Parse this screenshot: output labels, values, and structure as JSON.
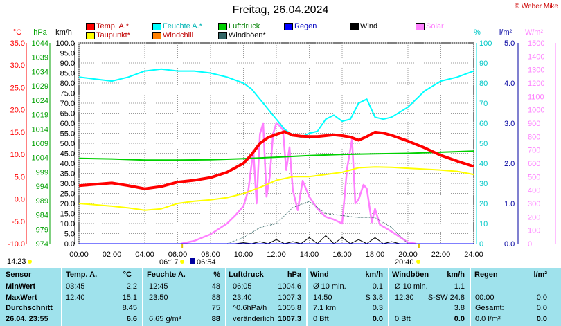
{
  "title": "Freitag, 26.04.2024",
  "credit": "© Weber Mike",
  "legend": [
    {
      "label": "Temp. A.*",
      "color": "#ff0000"
    },
    {
      "label": "Feuchte A.*",
      "color": "#00ffff"
    },
    {
      "label": "Luftdruck",
      "color": "#00d000"
    },
    {
      "label": "Regen",
      "color": "#0000ff"
    },
    {
      "label": "Wind",
      "color": "#000000"
    },
    {
      "label": "Solar",
      "color": "#ff80ff"
    },
    {
      "label": "Taupunkt*",
      "color": "#ffff00"
    },
    {
      "label": "Windchill",
      "color": "#ff8000"
    },
    {
      "label": "Windböen*",
      "color": "#336666"
    }
  ],
  "axes": {
    "temp_unit": "°C",
    "hpa_unit": "hPa",
    "kmh_unit": "km/h",
    "pct_unit": "%",
    "rain_unit": "l/m²",
    "solar_unit": "W/m²",
    "temp_ticks": [
      "35.0",
      "30.0",
      "25.0",
      "20.0",
      "15.0",
      "10.0",
      "5.0",
      "0.0",
      "-5.0",
      "-10.0"
    ],
    "hpa_ticks": [
      "1044",
      "1039",
      "1034",
      "1029",
      "1024",
      "1019",
      "1014",
      "1009",
      "1004",
      "999",
      "994",
      "989",
      "984",
      "979",
      "974"
    ],
    "kmh_ticks": [
      "100.0",
      "95.0",
      "90.0",
      "85.0",
      "80.0",
      "75.0",
      "70.0",
      "65.0",
      "60.0",
      "55.0",
      "50.0",
      "45.0",
      "40.0",
      "35.0",
      "30.0",
      "25.0",
      "20.0",
      "15.0",
      "10.0",
      "5.0",
      "0.0"
    ],
    "pct_ticks": [
      "100",
      "90",
      "80",
      "70",
      "60",
      "50",
      "40",
      "30",
      "20",
      "10",
      "0"
    ],
    "rain_ticks": [
      "5.0",
      "4.0",
      "3.0",
      "2.0",
      "1.0",
      "0.0"
    ],
    "solar_ticks": [
      "1500",
      "1400",
      "1300",
      "1200",
      "1100",
      "1000",
      "900",
      "800",
      "700",
      "600",
      "500",
      "400",
      "300",
      "200",
      "100",
      "0"
    ],
    "time_ticks": [
      "00:00",
      "02:00",
      "04:00",
      "06:00",
      "08:00",
      "10:00",
      "12:00",
      "14:00",
      "16:00",
      "18:00",
      "20:00",
      "22:00",
      "24:00"
    ]
  },
  "sun": {
    "now": "14:23",
    "sunrise": "06:17",
    "moonrise": "06:54",
    "sunset": "20:40"
  },
  "chart_data": {
    "type": "line",
    "x_unit": "hours",
    "xlim": [
      0,
      24
    ],
    "series": [
      {
        "name": "Temp. A.*",
        "axis": "°C",
        "color": "#ff0000",
        "x": [
          0,
          1,
          2,
          3,
          4,
          5,
          6,
          7,
          8,
          9,
          10,
          10.5,
          11,
          11.5,
          12,
          12.5,
          13,
          13.5,
          14,
          14.5,
          15,
          15.5,
          16,
          16.5,
          17,
          17.5,
          18,
          18.5,
          19,
          20,
          21,
          22,
          23,
          24
        ],
        "y": [
          3.0,
          3.3,
          3.6,
          3.0,
          2.3,
          2.8,
          3.8,
          4.2,
          4.8,
          6.0,
          8.0,
          10.0,
          12.5,
          13.8,
          14.5,
          15.1,
          14.3,
          14.1,
          14.0,
          14.0,
          14.2,
          14.4,
          14.2,
          13.9,
          13.2,
          14.0,
          15.0,
          14.8,
          14.3,
          13.0,
          11.5,
          9.8,
          8.5,
          7.3
        ]
      },
      {
        "name": "Taupunkt*",
        "axis": "°C",
        "color": "#ffff00",
        "x": [
          0,
          1,
          2,
          3,
          4,
          5,
          6,
          7,
          8,
          9,
          10,
          11,
          12,
          13,
          14,
          15,
          16,
          17,
          18,
          19,
          20,
          21,
          22,
          23,
          24
        ],
        "y": [
          -1.0,
          -1.3,
          -1.6,
          -2.0,
          -2.5,
          -2.2,
          -1.0,
          -0.5,
          -0.2,
          0.3,
          1.2,
          2.6,
          4.2,
          5.0,
          5.0,
          5.5,
          6.0,
          7.0,
          7.2,
          7.1,
          6.9,
          6.7,
          6.5,
          6.2,
          5.5
        ]
      },
      {
        "name": "Feuchte A.*",
        "axis": "%",
        "color": "#00ffff",
        "x": [
          0,
          1,
          2,
          3,
          4,
          5,
          6,
          7,
          8,
          9,
          10,
          10.5,
          11,
          11.5,
          12,
          12.5,
          13,
          13.5,
          14,
          14.5,
          15,
          15.5,
          16,
          16.5,
          17,
          17.5,
          18,
          18.5,
          19,
          20,
          21,
          22,
          23,
          24
        ],
        "y": [
          83,
          82,
          81,
          83,
          86,
          87,
          86,
          86,
          85,
          83,
          80,
          77,
          72,
          67,
          62,
          57,
          54,
          53,
          55,
          56,
          62,
          64,
          61,
          62,
          70,
          72,
          63,
          62,
          63,
          68,
          76,
          81,
          83,
          86
        ]
      },
      {
        "name": "Luftdruck",
        "axis": "hPa",
        "color": "#00d000",
        "x": [
          0,
          2,
          4,
          6,
          8,
          10,
          12,
          14,
          16,
          18,
          20,
          22,
          24
        ],
        "y": [
          1004.6,
          1004.4,
          1004.0,
          1004.0,
          1004.1,
          1004.5,
          1005.0,
          1005.6,
          1006.0,
          1006.2,
          1006.4,
          1006.8,
          1007.2
        ]
      },
      {
        "name": "Solar",
        "axis": "W/m²",
        "color": "#ff80ff",
        "x": [
          6.2,
          7,
          8,
          9,
          9.5,
          10,
          10.3,
          10.6,
          10.8,
          11,
          11.2,
          11.4,
          11.6,
          11.8,
          12,
          12.2,
          12.4,
          12.6,
          12.8,
          13,
          13.3,
          13.6,
          14,
          14.5,
          15,
          15.5,
          16,
          16.3,
          16.6,
          16.8,
          17,
          17.3,
          17.5,
          17.8,
          18,
          18.3,
          18.6,
          19,
          19.5,
          20,
          20.5
        ],
        "y": [
          0,
          20,
          70,
          150,
          210,
          280,
          400,
          700,
          300,
          820,
          900,
          350,
          500,
          820,
          900,
          880,
          850,
          550,
          720,
          400,
          250,
          470,
          350,
          260,
          200,
          180,
          150,
          560,
          780,
          300,
          330,
          440,
          410,
          160,
          260,
          140,
          120,
          90,
          50,
          10,
          0
        ]
      },
      {
        "name": "Windböen*",
        "axis": "km/h",
        "color": "#336666",
        "x": [
          0,
          9,
          10,
          11,
          12,
          13,
          14,
          15,
          16,
          17,
          18,
          19,
          19.5,
          20,
          24
        ],
        "y": [
          0,
          0,
          3,
          8,
          10,
          18,
          21,
          15,
          14,
          13,
          13,
          8,
          4,
          0,
          0
        ]
      },
      {
        "name": "Wind",
        "axis": "km/h",
        "color": "#000000",
        "x": [
          0,
          9.5,
          10,
          10.5,
          11,
          11.5,
          12,
          12.5,
          13,
          13.5,
          14,
          14.5,
          15,
          15.5,
          16,
          16.5,
          17,
          17.5,
          18,
          18.5,
          19,
          19.5,
          20,
          24
        ],
        "y": [
          0,
          0,
          0.5,
          0,
          1,
          0,
          2,
          0,
          1,
          0,
          3,
          0,
          4,
          0,
          3,
          0,
          2,
          0,
          3,
          0,
          1,
          0,
          0,
          0
        ]
      },
      {
        "name": "Regen",
        "axis": "l/m²",
        "color": "#0000ff",
        "x": [
          0,
          24
        ],
        "y": [
          0,
          0
        ]
      }
    ],
    "ylim_temp": [
      -10,
      35
    ],
    "ylim_pct": [
      0,
      100
    ],
    "ylim_hpa": [
      974,
      1046
    ],
    "ylim_kmh": [
      0,
      100
    ],
    "ylim_rain": [
      0,
      5
    ],
    "ylim_solar": [
      0,
      1500
    ],
    "grid": true
  },
  "table": {
    "headers": [
      "Sensor",
      "Temp. A.",
      "°C",
      "Feuchte A.",
      "%",
      "Luftdruck",
      "hPa",
      "Wind",
      "km/h",
      "Windböen",
      "km/h",
      "Regen",
      "l/m²"
    ],
    "rows": [
      {
        "label": "MinWert",
        "c": [
          "03:45",
          "2.2",
          "12:45",
          "48",
          "06:05",
          "1004.6",
          "Ø 10 min.",
          "0.1",
          "Ø 10 min.",
          "1.1",
          "",
          ""
        ]
      },
      {
        "label": "MaxWert",
        "c": [
          "12:40",
          "15.1",
          "23:50",
          "88",
          "23:40",
          "1007.3",
          "14:50",
          "S 3.8",
          "12:30",
          "S-SW 24.8",
          "00:00",
          "0.0"
        ]
      },
      {
        "label": "Durchschnitt",
        "c": [
          "",
          "8.45",
          "",
          "75",
          "^0.6hPa/h",
          "1005.8",
          "7.1 km",
          "0.3",
          "",
          "3.8",
          "Gesamt:",
          "0.0"
        ]
      },
      {
        "label": "26.04. 23:55",
        "c": [
          "",
          "6.6",
          "6.65 g/m³",
          "88",
          "veränderlich",
          "1007.3",
          "0 Bft",
          "0.0",
          "0 Bft",
          "0.0",
          "0.0 l/m²",
          "0.0"
        ]
      }
    ]
  }
}
